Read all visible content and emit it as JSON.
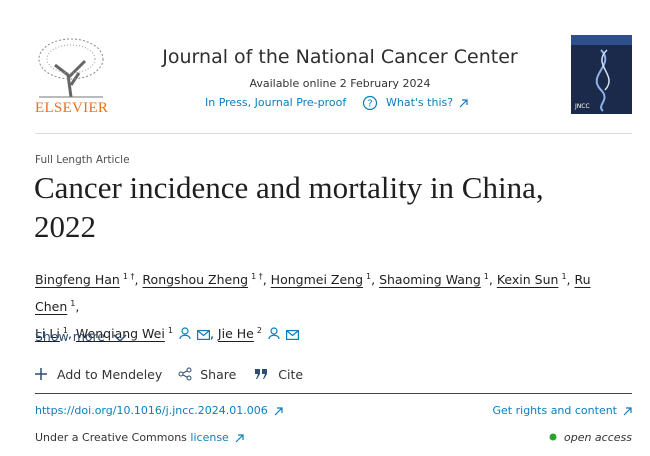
{
  "header": {
    "publisher": "ELSEVIER",
    "journal": "Journal of the National Cancer Center",
    "available": "Available online 2 February 2024",
    "status": "In Press, Journal Pre-proof",
    "help": "What's this?",
    "cover": "JNCC"
  },
  "article": {
    "type": "Full Length Article",
    "title": "Cancer incidence and mortality in China, 2022",
    "separator": ",",
    "authors": [
      {
        "name": "Bingfeng Han",
        "sup": "1 †"
      },
      {
        "name": "Rongshou Zheng",
        "sup": "1 †"
      },
      {
        "name": "Hongmei Zeng",
        "sup": "1"
      },
      {
        "name": "Shaoming Wang",
        "sup": "1"
      },
      {
        "name": "Kexin Sun",
        "sup": "1"
      },
      {
        "name": "Ru Chen",
        "sup": "1"
      },
      {
        "name": "Li Li",
        "sup": "1"
      },
      {
        "name": "Wenqiang Wei",
        "sup": "1",
        "corresponding": true
      },
      {
        "name": "Jie He",
        "sup": "2",
        "corresponding": true
      }
    ],
    "show_more": "Show more"
  },
  "actions": [
    "Add to Mendeley",
    "Share",
    "Cite"
  ],
  "links": {
    "doi": "https://doi.org/10.1016/j.jncc.2024.01.006",
    "rights": "Get rights and content",
    "license_prefix": "Under a Creative Commons",
    "license": "license",
    "access": "open access"
  }
}
